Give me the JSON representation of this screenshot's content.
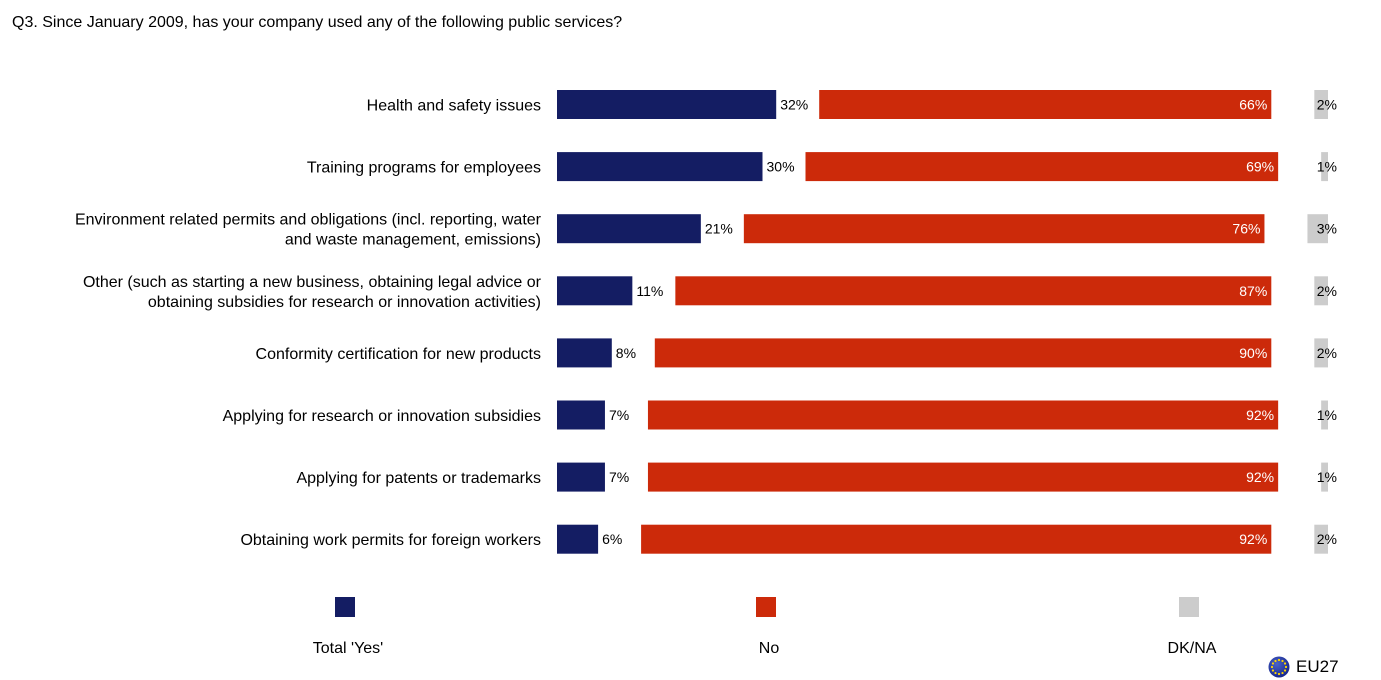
{
  "title": "Q3. Since January 2009, has your company used any of the following public services?",
  "colors": {
    "yes": "#141d63",
    "no": "#cc2a0a",
    "dkna": "#cccccc"
  },
  "chart_data": {
    "type": "bar",
    "orientation": "horizontal",
    "stacked": true,
    "categories": [
      [
        "Health and safety issues"
      ],
      [
        "Training programs for employees"
      ],
      [
        "Environment related permits and obligations (incl. reporting, water",
        "and waste management, emissions)"
      ],
      [
        "Other (such as starting a new business, obtaining legal advice or",
        "obtaining subsidies for research or innovation activities)"
      ],
      [
        "Conformity certification for new products"
      ],
      [
        "Applying for research or innovation subsidies"
      ],
      [
        "Applying for patents or trademarks"
      ],
      [
        "Obtaining work permits for foreign workers"
      ]
    ],
    "series": [
      {
        "name": "Total 'Yes'",
        "values": [
          32,
          30,
          21,
          11,
          8,
          7,
          7,
          6
        ]
      },
      {
        "name": "No",
        "values": [
          66,
          69,
          76,
          87,
          90,
          92,
          92,
          92
        ]
      },
      {
        "name": "DK/NA",
        "values": [
          2,
          1,
          3,
          2,
          2,
          1,
          1,
          2
        ]
      }
    ],
    "unit": "%"
  },
  "legend": [
    {
      "label": "Total 'Yes'"
    },
    {
      "label": "No"
    },
    {
      "label": "DK/NA"
    }
  ],
  "badge": {
    "text": "EU27",
    "icon": "eu-flag-icon"
  }
}
